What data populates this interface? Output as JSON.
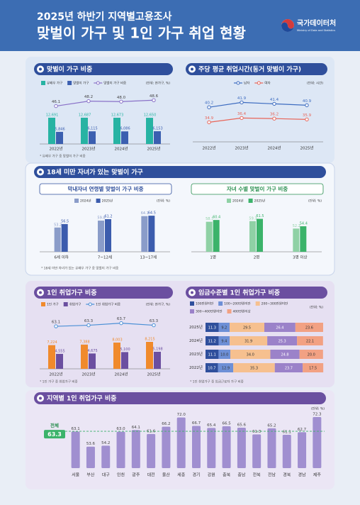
{
  "header": {
    "subtitle": "2025년 하반기 지역별고용조사",
    "title": "맞벌이 가구 및 1인 가구 취업 현황",
    "logo": "국가데이터처",
    "logo_sub": "Ministry of Data and Statistics"
  },
  "section2": {
    "title": "18세 미만 자녀가 있는 맞벌이 가구",
    "note": "* 18세 미만 자녀가 있는 유배우 가구 중 맞벌이 가구 비중"
  },
  "chart_data": [
    {
      "type": "bar-line",
      "title": "맞벌이 가구 비중",
      "unit": "(단위: 천가구, %)",
      "note": "* 유배우 가구 중 맞벌이 가구 비중",
      "categories": [
        "2022년",
        "2023년",
        "2024년",
        "2025년"
      ],
      "ylim": [
        0,
        25000
      ],
      "y2lim": [
        30,
        52
      ],
      "series": [
        {
          "name": "유배우 가구",
          "color": "#27b3a3",
          "values": [
            12691,
            12687,
            12673,
            12650
          ],
          "value_labels": [
            "12,691",
            "12,687",
            "12,673",
            "12,650"
          ]
        },
        {
          "name": "맞벌이 가구",
          "color": "#3b5fb0",
          "values": [
            5846,
            6115,
            6086,
            6153
          ],
          "value_labels": [
            "5,846",
            "6,115",
            "6,086",
            "6,153"
          ]
        },
        {
          "name": "맞벌이 가구 비중",
          "color": "#8a72c8",
          "axis": "y2",
          "values": [
            46.1,
            48.2,
            48.0,
            48.6
          ],
          "value_labels": [
            "46.1",
            "48.2",
            "48.0",
            "48.6"
          ]
        }
      ]
    },
    {
      "type": "line",
      "title": "주당 평균 취업시간(동거 맞벌이 가구)",
      "unit": "(단위: 시간)",
      "categories": [
        "2022년",
        "2023년",
        "2024년",
        "2025년"
      ],
      "ylim": [
        28,
        46
      ],
      "series": [
        {
          "name": "남자",
          "color": "#3d6cc0",
          "values": [
            40.2,
            41.9,
            41.4,
            40.9
          ]
        },
        {
          "name": "여자",
          "color": "#e8665a",
          "values": [
            34.9,
            36.4,
            36.2,
            35.9
          ]
        }
      ]
    },
    {
      "type": "bar",
      "title": "막내자녀 연령별 맞벌이 가구 비중",
      "unit": "(단위: %)",
      "categories": [
        "6세 이하",
        "7~12세",
        "13~17세"
      ],
      "ylim": [
        30,
        70
      ],
      "series": [
        {
          "name": "2024년",
          "color": "#8a9cc9",
          "values": [
            53.2,
            59.8,
            64.1
          ]
        },
        {
          "name": "2025년",
          "color": "#3c5cad",
          "values": [
            56.5,
            61.2,
            64.5
          ]
        }
      ]
    },
    {
      "type": "bar",
      "title": "자녀 수별 맞벌이 가구 비중",
      "unit": "(단위: %)",
      "categories": [
        "1명",
        "2명",
        "3명 이상"
      ],
      "ylim": [
        30,
        70
      ],
      "series": [
        {
          "name": "2024년",
          "color": "#8fd1a5",
          "values": [
            58.7,
            59.3,
            52.2
          ]
        },
        {
          "name": "2025년",
          "color": "#3bb36a",
          "values": [
            60.4,
            61.5,
            54.4
          ]
        }
      ]
    },
    {
      "type": "bar-line",
      "title": "1인 취업가구 비중",
      "unit": "(단위: 천가구, %)",
      "note": "* 1인 가구 중 취업가구 비중",
      "categories": [
        "2022년",
        "2023년",
        "2024년",
        "2025년"
      ],
      "ylim": [
        0,
        16000
      ],
      "y2lim": [
        55,
        65
      ],
      "series": [
        {
          "name": "1인 가구",
          "color": "#f08a2c",
          "values": [
            7224,
            7388,
            8003,
            8215
          ],
          "value_labels": [
            "7,224",
            "7,388",
            "8,003",
            "8,215"
          ]
        },
        {
          "name": "취업가구",
          "color": "#6b4fa0",
          "values": [
            4555,
            4675,
            5100,
            5198
          ],
          "value_labels": [
            "4,555",
            "4,675",
            "5,100",
            "5,198"
          ]
        },
        {
          "name": "1인 취업가구 비중",
          "color": "#4a8fd6",
          "axis": "y2",
          "values": [
            63.1,
            63.3,
            63.7,
            63.3
          ]
        }
      ]
    },
    {
      "type": "stacked-bar",
      "title": "임금수준별 1인 취업가구 비중",
      "unit": "(단위: %)",
      "note": "* 1인 취업가구 중 임금근로자 가구 비중",
      "categories": [
        "2025년",
        "2024년",
        "2023년",
        "2022년"
      ],
      "xlim": [
        0,
        100
      ],
      "series": [
        {
          "name": "100만원미만",
          "color": "#2f4f9c",
          "values": [
            11.3,
            11.2,
            11.1,
            10.7
          ]
        },
        {
          "name": "100~200만원미만",
          "color": "#6d8fd6",
          "values": [
            9.2,
            9.4,
            10.0,
            12.9
          ],
          "value_labels": [
            "9.2",
            "9.4",
            "10.0",
            "12.9"
          ]
        },
        {
          "name": "200~300만원미만",
          "color": "#f6c08f",
          "values": [
            29.5,
            31.9,
            34.0,
            35.3
          ],
          "value_labels": [
            "29.5",
            "31.9",
            "34.0",
            "35.3"
          ]
        },
        {
          "name": "300~400만원미만",
          "color": "#9b82c9",
          "values": [
            26.4,
            25.3,
            24.8,
            23.7
          ]
        },
        {
          "name": "400만원이상",
          "color": "#f2a183",
          "values": [
            23.6,
            22.1,
            20.0,
            17.5
          ],
          "value_labels": [
            "23.6",
            "22.1",
            "20.0",
            "17.5"
          ]
        }
      ]
    },
    {
      "type": "bar",
      "title": "지역별 1인 취업가구 비중",
      "unit": "(단위: %)",
      "categories": [
        "서울",
        "부산",
        "대구",
        "인천",
        "광주",
        "대전",
        "울산",
        "세종",
        "경기",
        "강원",
        "충북",
        "충남",
        "전북",
        "전남",
        "경북",
        "경남",
        "제주"
      ],
      "values": [
        63.1,
        53.6,
        54.2,
        63.0,
        64.1,
        61.6,
        66.2,
        72.0,
        66.7,
        65.4,
        66.5,
        65.6,
        61.3,
        65.2,
        61.1,
        62.7,
        72.3
      ],
      "value_labels": [
        "63.1",
        "53.6",
        "54.2",
        "63.0",
        "64.1",
        "61.6",
        "66.2",
        "72.0",
        "66.7",
        "65.4",
        "66.5",
        "65.6",
        "61.3",
        "65.2",
        "61.1",
        "62.7",
        "72.3"
      ],
      "color": "#a08fd0",
      "ylim": [
        40,
        75
      ],
      "reference": {
        "label": "전체",
        "value": 63.3
      }
    }
  ]
}
